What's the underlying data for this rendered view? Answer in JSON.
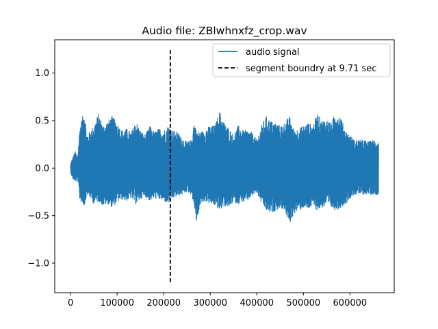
{
  "chart_data": {
    "type": "line",
    "title": "Audio file: ZBlwhnxfz_crop.wav",
    "xlabel": "",
    "ylabel": "",
    "xlim": [
      -34000,
      695000
    ],
    "ylim": [
      -1.31,
      1.35
    ],
    "x_ticks": [
      0,
      100000,
      200000,
      300000,
      400000,
      500000,
      600000
    ],
    "x_tick_labels": [
      "0",
      "100000",
      "200000",
      "300000",
      "400000",
      "500000",
      "600000"
    ],
    "y_ticks": [
      -1.0,
      -0.5,
      0.0,
      0.5,
      1.0
    ],
    "y_tick_labels": [
      "−1.0",
      "−0.5",
      "0.0",
      "0.5",
      "1.0"
    ],
    "grid": false,
    "legend_position": "top-right",
    "series": [
      {
        "name": "audio signal",
        "color": "#1f77b4",
        "style": "solid",
        "x_range": [
          0,
          661500
        ],
        "envelope": {
          "x": [
            0,
            5000,
            10000,
            15000,
            20000,
            30000,
            35000,
            40000,
            50000,
            60000,
            70000,
            80000,
            90000,
            100000,
            110000,
            120000,
            130000,
            140000,
            150000,
            160000,
            170000,
            180000,
            190000,
            200000,
            210000,
            220000,
            230000,
            240000,
            250000,
            260000,
            265000,
            270000,
            280000,
            290000,
            300000,
            310000,
            320000,
            330000,
            340000,
            350000,
            360000,
            370000,
            380000,
            390000,
            400000,
            410000,
            420000,
            430000,
            440000,
            450000,
            460000,
            470000,
            480000,
            490000,
            500000,
            510000,
            520000,
            530000,
            540000,
            550000,
            560000,
            570000,
            580000,
            590000,
            600000,
            610000,
            620000,
            630000,
            640000,
            650000,
            661500
          ],
          "upper": [
            0.05,
            0.12,
            0.18,
            0.12,
            0.45,
            0.62,
            0.35,
            0.38,
            0.45,
            0.58,
            0.45,
            0.5,
            0.55,
            0.48,
            0.4,
            0.42,
            0.38,
            0.5,
            0.4,
            0.35,
            0.45,
            0.38,
            0.42,
            0.4,
            0.45,
            0.4,
            0.38,
            0.32,
            0.28,
            0.3,
            0.5,
            0.4,
            0.38,
            0.42,
            0.45,
            0.45,
            0.6,
            0.48,
            0.42,
            0.35,
            0.45,
            0.4,
            0.4,
            0.38,
            0.3,
            0.45,
            0.55,
            0.5,
            0.48,
            0.45,
            0.48,
            0.55,
            0.4,
            0.42,
            0.45,
            0.48,
            0.45,
            0.58,
            0.5,
            0.52,
            0.48,
            0.6,
            0.55,
            0.4,
            0.35,
            0.3,
            0.3,
            0.3,
            0.28,
            0.3,
            0.28
          ],
          "lower": [
            -0.05,
            -0.12,
            -0.15,
            -0.12,
            -0.35,
            -0.4,
            -0.28,
            -0.3,
            -0.38,
            -0.35,
            -0.4,
            -0.38,
            -0.42,
            -0.36,
            -0.33,
            -0.35,
            -0.32,
            -0.38,
            -0.33,
            -0.3,
            -0.35,
            -0.32,
            -0.33,
            -0.35,
            -0.38,
            -0.32,
            -0.3,
            -0.28,
            -0.25,
            -0.28,
            -0.4,
            -0.58,
            -0.38,
            -0.35,
            -0.38,
            -0.4,
            -0.45,
            -0.4,
            -0.42,
            -0.36,
            -0.38,
            -0.36,
            -0.35,
            -0.3,
            -0.26,
            -0.38,
            -0.45,
            -0.48,
            -0.45,
            -0.42,
            -0.45,
            -0.6,
            -0.48,
            -0.45,
            -0.42,
            -0.44,
            -0.4,
            -0.45,
            -0.42,
            -0.4,
            -0.42,
            -0.45,
            -0.42,
            -0.38,
            -0.32,
            -0.28,
            -0.28,
            -0.28,
            -0.28,
            -0.28,
            -0.28
          ]
        }
      },
      {
        "name": "segment boundry at 9.71 sec",
        "color": "#000000",
        "style": "dashed",
        "x": [
          214110,
          214110
        ],
        "y": [
          -1.2,
          1.24
        ]
      }
    ]
  }
}
